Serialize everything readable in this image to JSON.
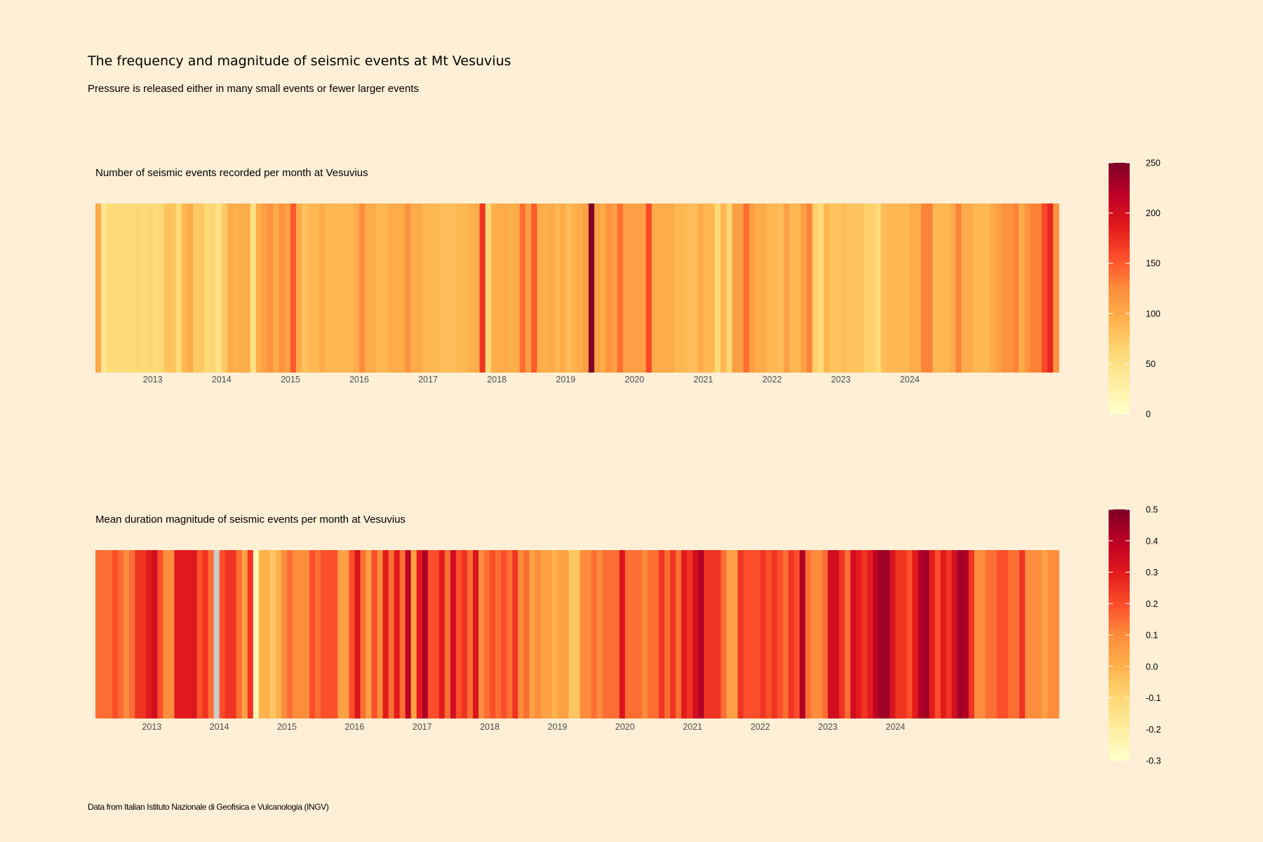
{
  "title": "The frequency and magnitude of seismic events at Mt Vesuvius",
  "subtitle": "Pressure is released either in many small events or fewer larger events",
  "caption": "Data from Italian Istituto Nazionale di Geofisica e Vulcanologia (INGV)",
  "colors": {
    "background": "#FEEFD6",
    "palette": [
      "#FFFFCC",
      "#FFEDA0",
      "#FED976",
      "#FEB24C",
      "#FD8D3C",
      "#FC4E2A",
      "#E31A1C",
      "#BD0026",
      "#800026"
    ],
    "na": "#CCCCCC"
  },
  "chart_data": [
    {
      "type": "heatmap",
      "title": "Number of seismic events recorded per month at Vesuvius",
      "x_start": "2012-09",
      "x_ticks": [
        "2013",
        "2014",
        "2015",
        "2016",
        "2017",
        "2018",
        "2019",
        "2020",
        "2021",
        "2022",
        "2023",
        "2024"
      ],
      "legend": {
        "position": "right",
        "limits": [
          0,
          250
        ],
        "breaks": [
          0,
          50,
          100,
          150,
          200,
          250
        ],
        "break_labels": [
          "0",
          "50",
          "100",
          "150",
          "200",
          "250"
        ]
      },
      "values": [
        100,
        40,
        60,
        60,
        60,
        60,
        60,
        65,
        60,
        65,
        60,
        65,
        80,
        80,
        60,
        90,
        100,
        75,
        75,
        60,
        65,
        50,
        75,
        100,
        95,
        100,
        100,
        50,
        100,
        110,
        120,
        100,
        120,
        110,
        150,
        100,
        80,
        90,
        90,
        100,
        90,
        90,
        90,
        90,
        90,
        100,
        125,
        100,
        100,
        90,
        90,
        100,
        100,
        100,
        120,
        100,
        100,
        90,
        90,
        90,
        85,
        85,
        85,
        90,
        90,
        95,
        100,
        170,
        60,
        95,
        100,
        100,
        95,
        100,
        140,
        110,
        150,
        100,
        95,
        100,
        90,
        100,
        85,
        95,
        100,
        110,
        250,
        110,
        100,
        120,
        110,
        140,
        110,
        110,
        110,
        110,
        160,
        100,
        100,
        100,
        100,
        90,
        90,
        85,
        85,
        100,
        90,
        90,
        60,
        90,
        65,
        110,
        110,
        140,
        110,
        100,
        100,
        90,
        90,
        85,
        110,
        90,
        90,
        110,
        130,
        70,
        60,
        90,
        80,
        80,
        85,
        80,
        80,
        80,
        70,
        70,
        60,
        85,
        90,
        90,
        90,
        90,
        100,
        100,
        130,
        130,
        90,
        90,
        90,
        100,
        130,
        100,
        100,
        90,
        90,
        90,
        100,
        110,
        120,
        120,
        130,
        100,
        120,
        130,
        130,
        160,
        180,
        120
      ]
    },
    {
      "type": "heatmap",
      "title": "Mean duration magnitude of seismic events per month at Vesuvius",
      "x_start": "2012-09",
      "x_ticks": [
        "2013",
        "2014",
        "2015",
        "2016",
        "2017",
        "2018",
        "2019",
        "2020",
        "2021",
        "2022",
        "2023",
        "2024"
      ],
      "legend": {
        "position": "right",
        "limits": [
          -0.3,
          0.5
        ],
        "breaks": [
          -0.3,
          -0.2,
          -0.1,
          0.0,
          0.1,
          0.2,
          0.3,
          0.4,
          0.5
        ],
        "break_labels": [
          "-0.3",
          "-0.2",
          "-0.1",
          "0.0",
          "0.1",
          "0.2",
          "0.3",
          "0.4",
          "0.5"
        ]
      },
      "values": [
        0.15,
        0.15,
        0.15,
        0.2,
        0.15,
        0.1,
        0.15,
        0.25,
        0.25,
        0.3,
        0.35,
        0.2,
        0.1,
        0.1,
        0.3,
        0.3,
        0.3,
        0.32,
        0.2,
        0.25,
        0.15,
        null,
        0.2,
        0.25,
        0.25,
        0.15,
        0.05,
        0.25,
        -0.25,
        0.0,
        0.0,
        -0.05,
        0.0,
        0.1,
        0.15,
        0.1,
        0.1,
        0.1,
        0.2,
        0.15,
        0.2,
        0.2,
        0.2,
        0.05,
        0.05,
        0.2,
        0.32,
        0.15,
        0.05,
        0.2,
        0.1,
        0.3,
        0.15,
        0.3,
        0.15,
        0.4,
        0.05,
        0.3,
        0.42,
        0.2,
        0.2,
        0.3,
        0.15,
        0.35,
        0.2,
        0.25,
        0.15,
        0.32,
        0.1,
        0.15,
        0.2,
        0.15,
        0.2,
        0.15,
        0.25,
        0.1,
        0.15,
        0.05,
        0.1,
        0.05,
        0.05,
        0.0,
        0.05,
        0.05,
        -0.05,
        -0.05,
        0.1,
        0.1,
        0.15,
        0.1,
        0.15,
        0.15,
        0.15,
        0.32,
        0.15,
        0.15,
        0.15,
        0.1,
        0.15,
        0.15,
        0.25,
        0.15,
        0.25,
        0.15,
        0.3,
        0.25,
        0.35,
        0.42,
        0.25,
        0.25,
        0.25,
        0.15,
        0.05,
        0.05,
        0.25,
        0.2,
        0.2,
        0.2,
        0.25,
        0.2,
        0.25,
        0.2,
        0.15,
        0.25,
        0.2,
        0.42,
        0.15,
        0.1,
        0.1,
        0.15,
        0.35,
        0.35,
        0.25,
        0.15,
        0.35,
        0.3,
        0.25,
        0.3,
        0.4,
        0.45,
        0.45,
        0.32,
        0.25,
        0.25,
        0.2,
        0.3,
        0.42,
        0.45,
        0.3,
        0.2,
        0.3,
        0.25,
        0.35,
        0.45,
        0.42,
        0.25,
        0.1,
        0.1,
        0.15,
        0.15,
        0.2,
        0.2,
        0.15,
        0.15,
        0.25,
        0.1,
        0.1,
        0.1,
        0.05,
        0.1,
        0.1
      ]
    }
  ]
}
